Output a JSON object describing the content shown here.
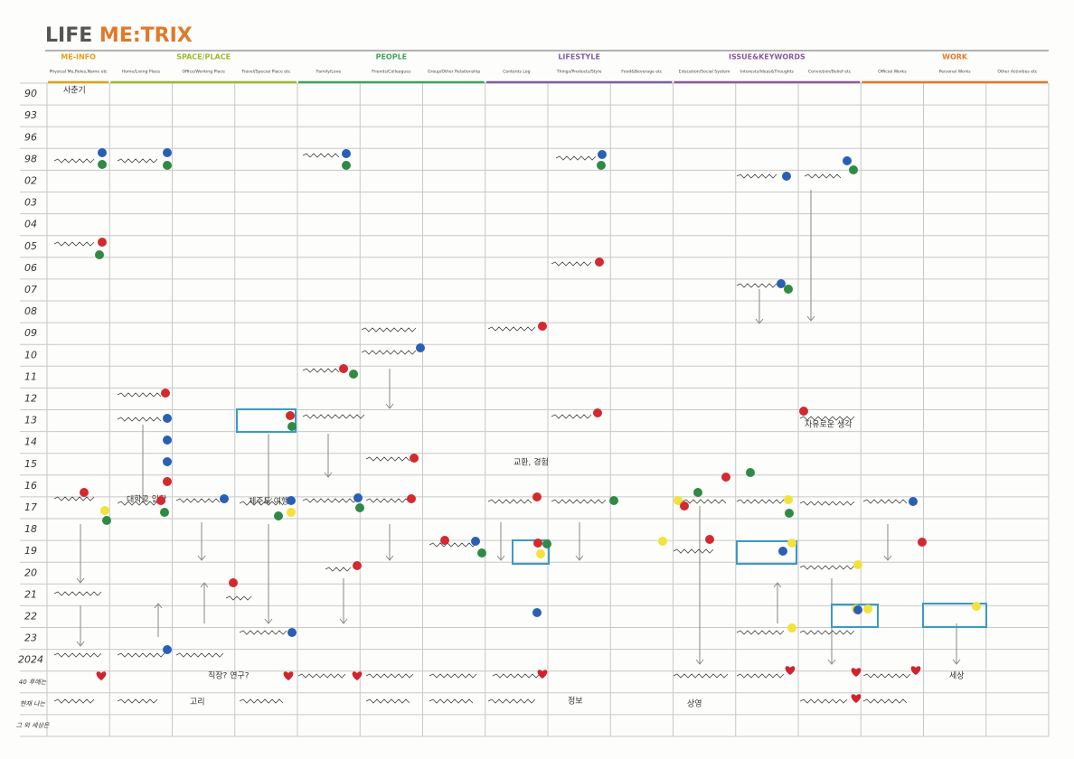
{
  "header": {
    "logo_left": "LIFE ",
    "logo_right": "ME:TRIX"
  },
  "groups": [
    {
      "name": "ME-INFO",
      "color": "#e0a11b",
      "columns": [
        "Physical Me,Roles,Name etc"
      ]
    },
    {
      "name": "SPACE/PLACE",
      "color": "#9cb92c",
      "columns": [
        "Home/Living Place",
        "Office/Working Place",
        "Travel/Special Place etc"
      ]
    },
    {
      "name": "PEOPLE",
      "color": "#3ea35b",
      "columns": [
        "Family/Love",
        "Friends/Colleagues",
        "Group/Other Relationship"
      ]
    },
    {
      "name": "LIFESTYLE",
      "color": "#7b5fa8",
      "columns": [
        "Contents Log",
        "Things/Products/Style",
        "Food&Beverage etc"
      ]
    },
    {
      "name": "ISSUE&KEYWORDS",
      "color": "#8a5aa0",
      "columns": [
        "Education/Social System",
        "Interests/Ideas&Thoughts",
        "Conviction/Belief etc"
      ]
    },
    {
      "name": "WORK",
      "color": "#e3782a",
      "columns": [
        "Official Works",
        "Personal Works",
        "Other Activities etc"
      ]
    }
  ],
  "rows": [
    "90",
    "93",
    "96",
    "98",
    "02",
    "03",
    "04",
    "05",
    "06",
    "07",
    "08",
    "09",
    "10",
    "11",
    "12",
    "13",
    "14",
    "15",
    "16",
    "17",
    "18",
    "19",
    "20",
    "21",
    "22",
    "23",
    "2024",
    "40 후에는",
    "현재 나는",
    "그 외 세상은"
  ],
  "notes": [
    "직장? 연구?",
    "고리",
    "상영",
    "정보",
    "교환, 경험",
    "세상",
    "제주도 여행",
    "사춘기",
    "자유로운 생각",
    "대학교 입학"
  ]
}
